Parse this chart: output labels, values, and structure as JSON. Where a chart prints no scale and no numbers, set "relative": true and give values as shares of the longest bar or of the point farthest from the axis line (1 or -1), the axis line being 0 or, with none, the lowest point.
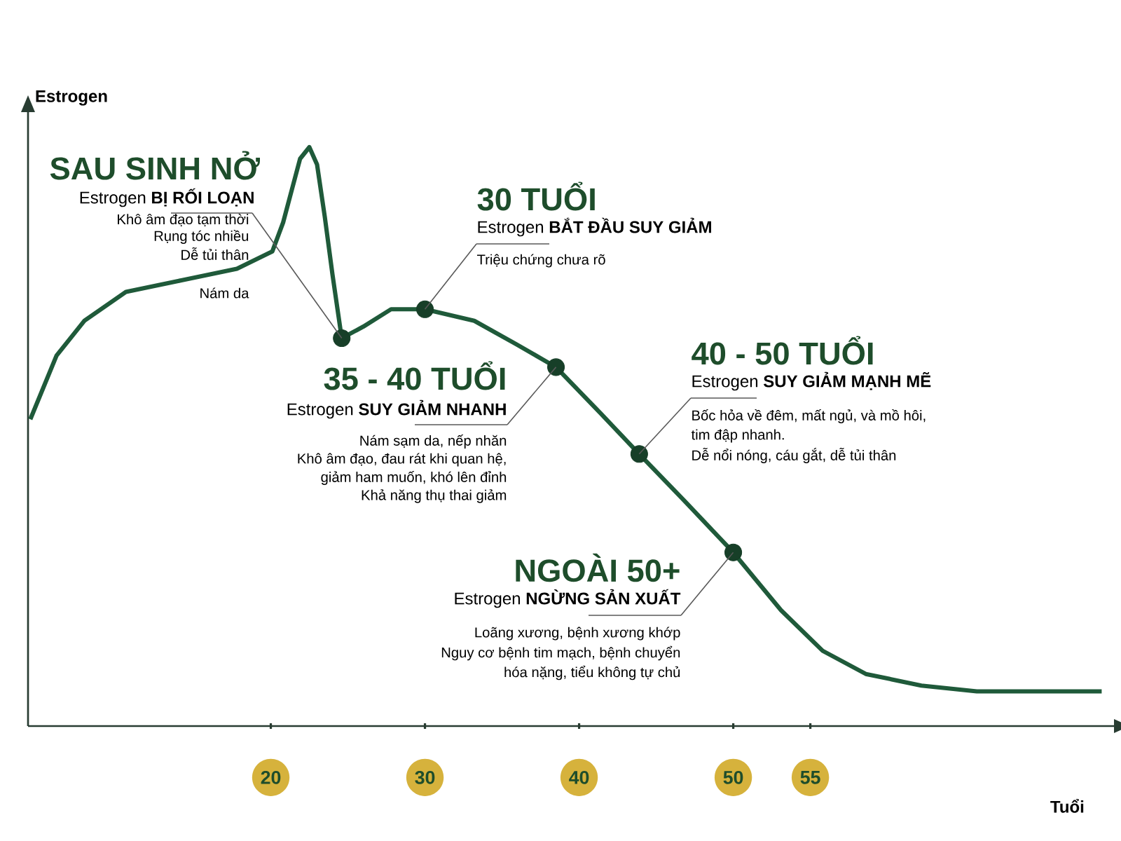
{
  "chart_data": {
    "type": "line",
    "relative": true,
    "xlabel": "Tuổi",
    "ylabel": "Estrogen",
    "xlim": [
      4.25,
      74.7
    ],
    "xticks": [
      20,
      30,
      40,
      50,
      55
    ],
    "series": [
      {
        "type": "line",
        "color": "#1f5a3a",
        "x": [
          4.4,
          6.1,
          7.9,
          10.6,
          14.2,
          17.8,
          20.1,
          20.8,
          21.4,
          21.9,
          22.5,
          23.0,
          23.5,
          24.0,
          24.6,
          26.0,
          27.8,
          30.0,
          33.2,
          35.9,
          38.5,
          41.4,
          43.9,
          46.8,
          50.0,
          53.1,
          55.8,
          58.6,
          62.2,
          65.8,
          69.4,
          73.9
        ],
        "values": [
          0.53,
          0.64,
          0.7,
          0.75,
          0.77,
          0.79,
          0.82,
          0.87,
          0.93,
          0.98,
          1.0,
          0.97,
          0.88,
          0.78,
          0.67,
          0.69,
          0.72,
          0.72,
          0.7,
          0.66,
          0.62,
          0.54,
          0.47,
          0.39,
          0.3,
          0.2,
          0.13,
          0.09,
          0.07,
          0.06,
          0.06,
          0.06
        ]
      },
      {
        "type": "scatter",
        "marker": "circle",
        "color": "#173f28",
        "x": [
          24.6,
          30.0,
          38.5,
          43.9,
          50.0
        ],
        "values": [
          0.67,
          0.72,
          0.62,
          0.47,
          0.3
        ]
      }
    ],
    "annotations": [
      {
        "text": "SAU SINH NỞ",
        "x": 24.6,
        "y": 0.67
      },
      "Estrogen **BỊ RỐI LOẠN**",
      "Khô âm đạo tạm thời",
      "Rụng tóc nhiều",
      "Dễ tủi thân",
      "Nám da",
      {
        "text": "30 TUỔI",
        "x": 30.0,
        "y": 0.72
      },
      "Estrogen **BẮT ĐẦU SUY GIẢM**",
      "Triệu chứng chưa rõ",
      {
        "text": "35 - 40 TUỔI",
        "x": 38.5,
        "y": 0.62
      },
      "Estrogen **SUY GIẢM NHANH**",
      "Nám sạm da, nếp nhăn",
      "Khô âm đạo, đau rát khi quan hệ,",
      "giảm ham muốn, khó lên đỉnh",
      "Khả năng thụ thai giảm",
      {
        "text": "40 - 50 TUỔI",
        "x": 43.9,
        "y": 0.47
      },
      "Estrogen **SUY GIẢM MẠNH MẼ**",
      "Bốc hỏa về đêm, mất ngủ, và mồ hôi,",
      "tim đập nhanh.",
      "Dễ nổi nóng, cáu gắt, dễ tủi thân",
      {
        "text": "NGOÀI 50+",
        "x": 50.0,
        "y": 0.3
      },
      "Estrogen **NGỪNG SẢN XUẤT**",
      "Loãng xương, bệnh xương khớp",
      "Nguy cơ bệnh tim mạch, bệnh chuyển",
      "hóa nặng, tiểu không tự chủ"
    ]
  }
}
